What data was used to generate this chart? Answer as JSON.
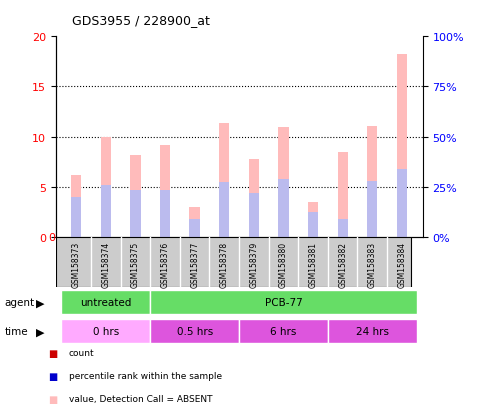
{
  "title": "GDS3955 / 228900_at",
  "samples": [
    "GSM158373",
    "GSM158374",
    "GSM158375",
    "GSM158376",
    "GSM158377",
    "GSM158378",
    "GSM158379",
    "GSM158380",
    "GSM158381",
    "GSM158382",
    "GSM158383",
    "GSM158384"
  ],
  "value_absent": [
    6.2,
    10.0,
    8.2,
    9.2,
    3.0,
    11.4,
    7.8,
    11.0,
    3.5,
    8.5,
    11.1,
    18.2
  ],
  "rank_absent_pct": [
    20,
    26,
    23.5,
    23.5,
    9,
    27.5,
    22,
    29,
    12.5,
    9,
    28,
    34
  ],
  "ylim_left": [
    0,
    20
  ],
  "ylim_right": [
    0,
    100
  ],
  "yticks_left": [
    0,
    5,
    10,
    15,
    20
  ],
  "yticks_right": [
    0,
    25,
    50,
    75,
    100
  ],
  "ytick_labels_left": [
    "0",
    "5",
    "10",
    "15",
    "20"
  ],
  "ytick_labels_right": [
    "0%",
    "25%",
    "50%",
    "75%",
    "100%"
  ],
  "color_value_absent": "#ffbbbb",
  "color_rank_absent": "#bbbbee",
  "color_count": "#cc0000",
  "color_percentile": "#0000cc",
  "bg_color": "#ffffff",
  "sample_bg_color": "#cccccc",
  "bar_width": 0.35,
  "agent_untreated_color": "#66dd66",
  "agent_pcb_color": "#66dd66",
  "time_0_color": "#ffaaff",
  "time_rest_color": "#dd55dd",
  "grid_dotted_vals": [
    5,
    10,
    15
  ]
}
